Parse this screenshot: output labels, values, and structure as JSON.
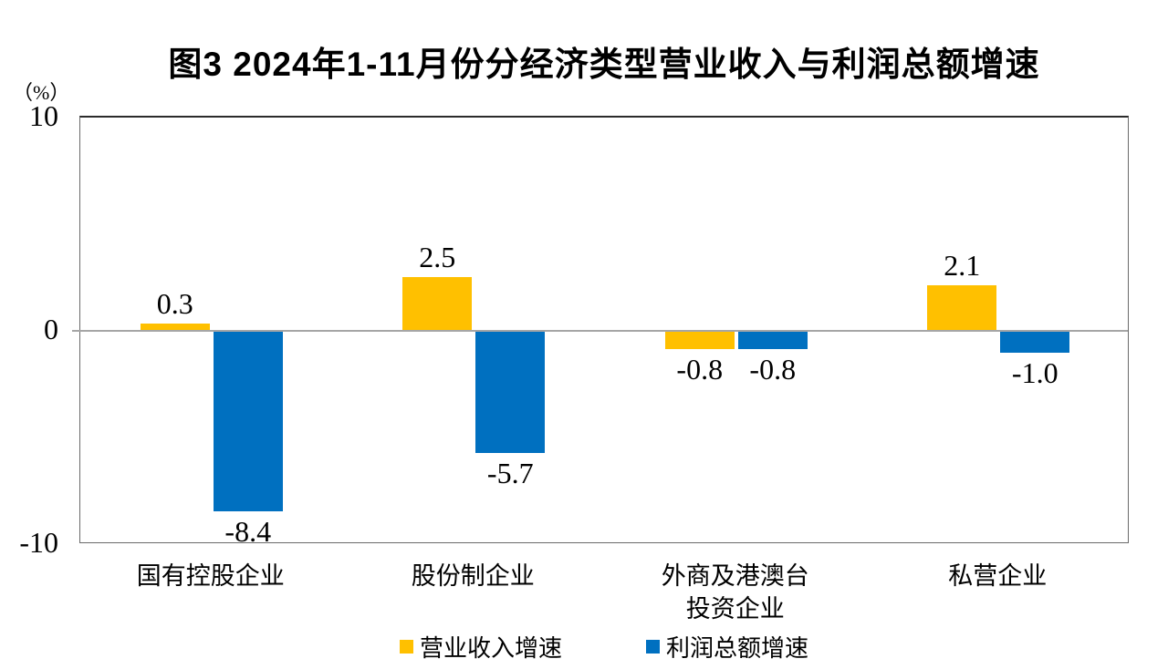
{
  "figure": {
    "title": "图3  2024年1-11月份分经济类型营业收入与利润总额增速",
    "y_unit_label": "（%）"
  },
  "chart_data": {
    "type": "bar",
    "title": "图3  2024年1-11月份分经济类型营业收入与利润总额增速",
    "ylabel": "（%）",
    "categories": [
      "国有控股企业",
      "股份制企业",
      "外商及港澳台\n投资企业",
      "私营企业"
    ],
    "series": [
      {
        "name": "营业收入增速",
        "color": "#FFC000",
        "values": [
          0.3,
          2.5,
          -0.8,
          2.1
        ]
      },
      {
        "name": "利润总额增速",
        "color": "#0070C0",
        "values": [
          -8.4,
          -5.7,
          -0.8,
          -1.0
        ]
      }
    ],
    "value_labels": {
      "营业收入增速": [
        "0.3",
        "2.5",
        "-0.8",
        "2.1"
      ],
      "利润总额增速": [
        "-8.4",
        "-5.7",
        "-0.8",
        "-1.0"
      ]
    },
    "ylim": [
      -10,
      10
    ],
    "yticks": [
      10,
      0,
      -10
    ],
    "grid": false,
    "zero_line_color": "#A6A6A6",
    "legend_position": "bottom"
  }
}
